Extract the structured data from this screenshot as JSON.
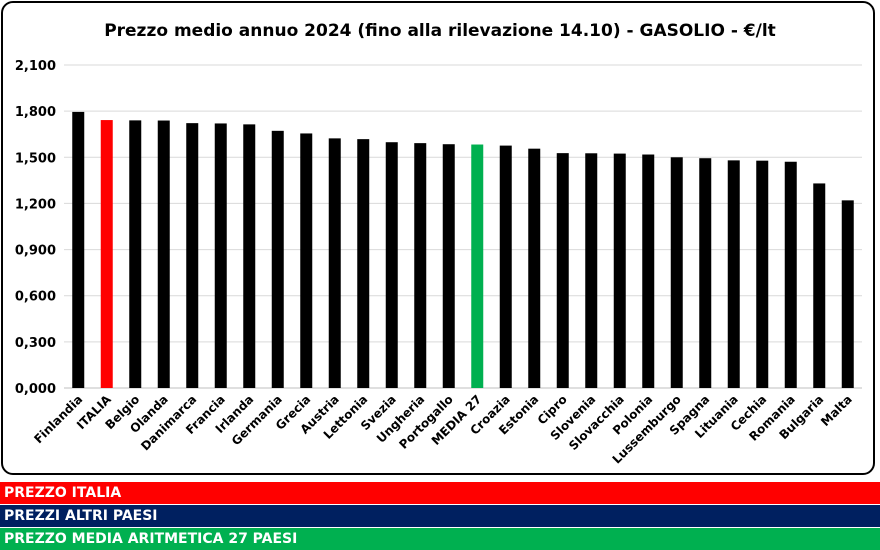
{
  "chart_data": {
    "type": "bar",
    "title": "Prezzo medio annuo 2024 (fino alla rilevazione 14.10) - GASOLIO - €/lt",
    "categories": [
      "Finlandia",
      "ITALIA",
      "Belgio",
      "Olanda",
      "Danimarca",
      "Francia",
      "Irlanda",
      "Germania",
      "Grecia",
      "Austria",
      "Lettonia",
      "Svezia",
      "Ungheria",
      "Portogallo",
      "MEDIA 27",
      "Croazia",
      "Estonia",
      "Cipro",
      "Slovenia",
      "Slovacchia",
      "Polonia",
      "Lussemburgo",
      "Spagna",
      "Lituania",
      "Cechia",
      "Romania",
      "Bulgaria",
      "Malta"
    ],
    "values": [
      1.795,
      1.742,
      1.74,
      1.739,
      1.722,
      1.72,
      1.714,
      1.672,
      1.655,
      1.623,
      1.618,
      1.598,
      1.592,
      1.585,
      1.583,
      1.576,
      1.556,
      1.527,
      1.526,
      1.524,
      1.518,
      1.5,
      1.494,
      1.48,
      1.478,
      1.471,
      1.33,
      1.22
    ],
    "highlight": {
      "ITALIA": "#ff0000",
      "MEDIA 27": "#00b050"
    },
    "default_color": "#000000",
    "ylim": [
      0,
      2.1
    ],
    "yticks": [
      "0,000",
      "0,300",
      "0,600",
      "0,900",
      "1,200",
      "1,500",
      "1,800",
      "2,100"
    ],
    "ytick_values": [
      0,
      0.3,
      0.6,
      0.9,
      1.2,
      1.5,
      1.8,
      2.1
    ],
    "xlabel": "",
    "ylabel": "",
    "grid": true
  },
  "legend": {
    "italia": {
      "label": "PREZZO ITALIA",
      "color": "#ff0000"
    },
    "altri": {
      "label": "PREZZI ALTRI PAESI",
      "color": "#002060"
    },
    "media": {
      "label": "PREZZO MEDIA ARITMETICA 27 PAESI",
      "color": "#00b050"
    }
  }
}
